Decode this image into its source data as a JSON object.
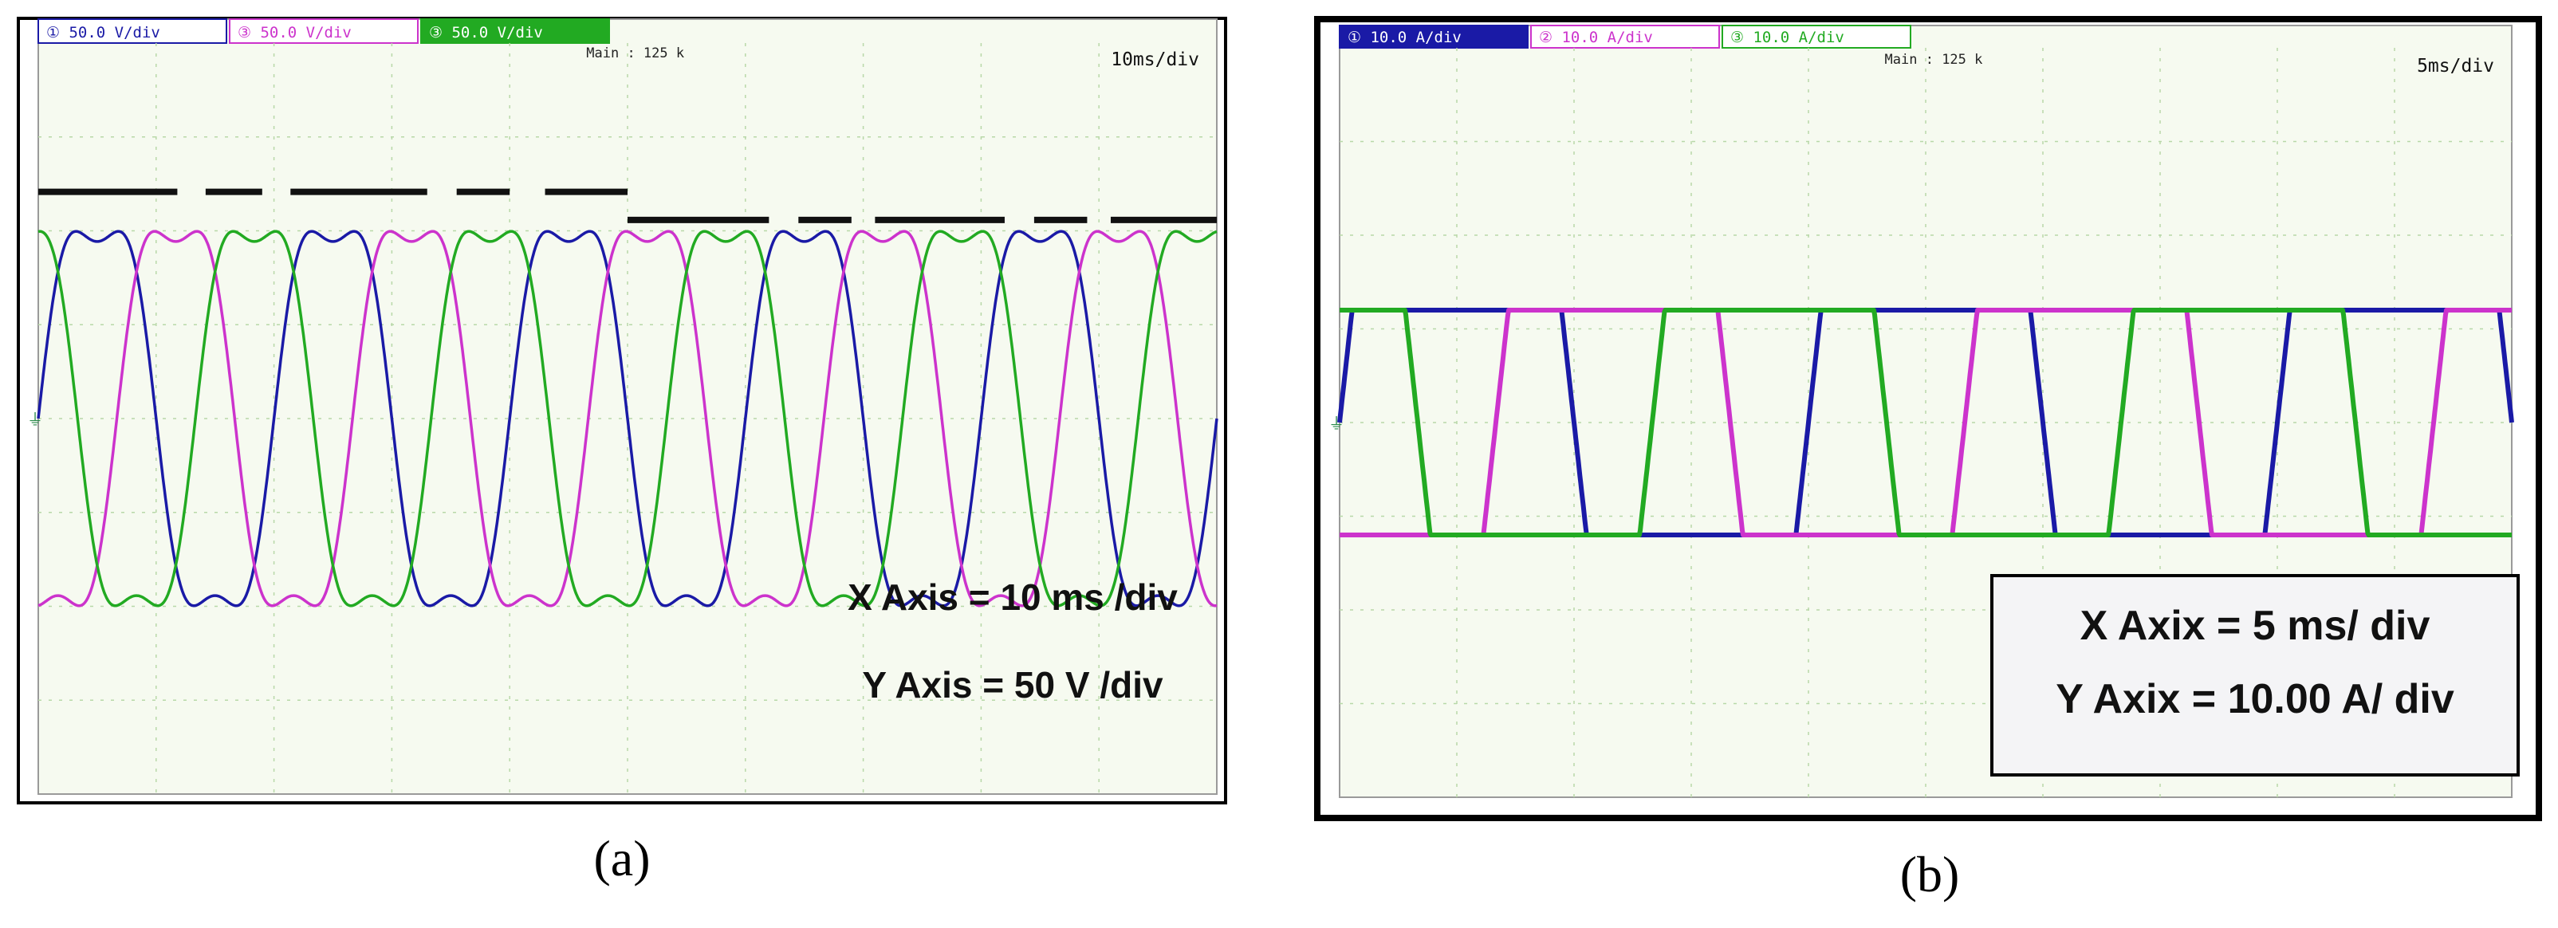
{
  "panels": [
    {
      "id": "a",
      "caption": "(a)",
      "channel_tags": [
        {
          "text": "① 50.0 V/div",
          "color": "#1a1aa6"
        },
        {
          "text": "③ 50.0 V/div",
          "color": "#cc33cc"
        },
        {
          "text": "③ 50.0 V/div",
          "color": "#22aa22"
        }
      ],
      "main_label": "Main : 125 k",
      "timebase": "10ms/div",
      "annotation_lines": [
        "X Axis = 10 ms /div",
        "Y Axis = 50 V /div"
      ],
      "annotation_boxed": false,
      "has_dashes": true
    },
    {
      "id": "b",
      "caption": "(b)",
      "channel_tags": [
        {
          "text": "① 10.0 A/div",
          "color": "#1a1aa6"
        },
        {
          "text": "② 10.0 A/div",
          "color": "#cc33cc"
        },
        {
          "text": "③ 10.0 A/div",
          "color": "#22aa22"
        }
      ],
      "main_label": "Main : 125 k",
      "timebase": "5ms/div",
      "annotation_lines": [
        "X Axix = 5 ms/ div",
        "Y Axix = 10.00 A/ div"
      ],
      "annotation_boxed": true,
      "has_dashes": false
    }
  ],
  "chart_data": [
    {
      "type": "line",
      "title": "",
      "xlabel": "X Axis = 10 ms /div",
      "ylabel": "Y Axis = 50 V /div",
      "x_units": "ms",
      "y_units": "V",
      "x_per_div": 10,
      "y_per_div": 50,
      "xlim": [
        0,
        100
      ],
      "ylim": [
        -200,
        200
      ],
      "grid": true,
      "waveform": "pwm-shaped sinusoid",
      "series": [
        {
          "color": "#1a1aa6",
          "amplitude": 115,
          "period_ms": 20,
          "phase_deg": 0
        },
        {
          "color": "#cc33cc",
          "amplitude": 115,
          "period_ms": 20,
          "phase_deg": -120
        },
        {
          "color": "#22aa22",
          "amplitude": 115,
          "period_ms": 20,
          "phase_deg": 120
        }
      ]
    },
    {
      "type": "line",
      "title": "",
      "xlabel": "X Axix = 5 ms/ div",
      "ylabel": "Y Axix = 10.00 A/ div",
      "x_units": "ms",
      "y_units": "A",
      "x_per_div": 5,
      "y_per_div": 10,
      "xlim": [
        0,
        50
      ],
      "ylim": [
        -40,
        40
      ],
      "grid": true,
      "waveform": "quasi-square",
      "series": [
        {
          "color": "#1a1aa6",
          "amplitude": 12,
          "period_ms": 20,
          "phase_deg": 0
        },
        {
          "color": "#cc33cc",
          "amplitude": 12,
          "period_ms": 20,
          "phase_deg": -120
        },
        {
          "color": "#22aa22",
          "amplitude": 12,
          "period_ms": 20,
          "phase_deg": 120
        }
      ]
    }
  ]
}
